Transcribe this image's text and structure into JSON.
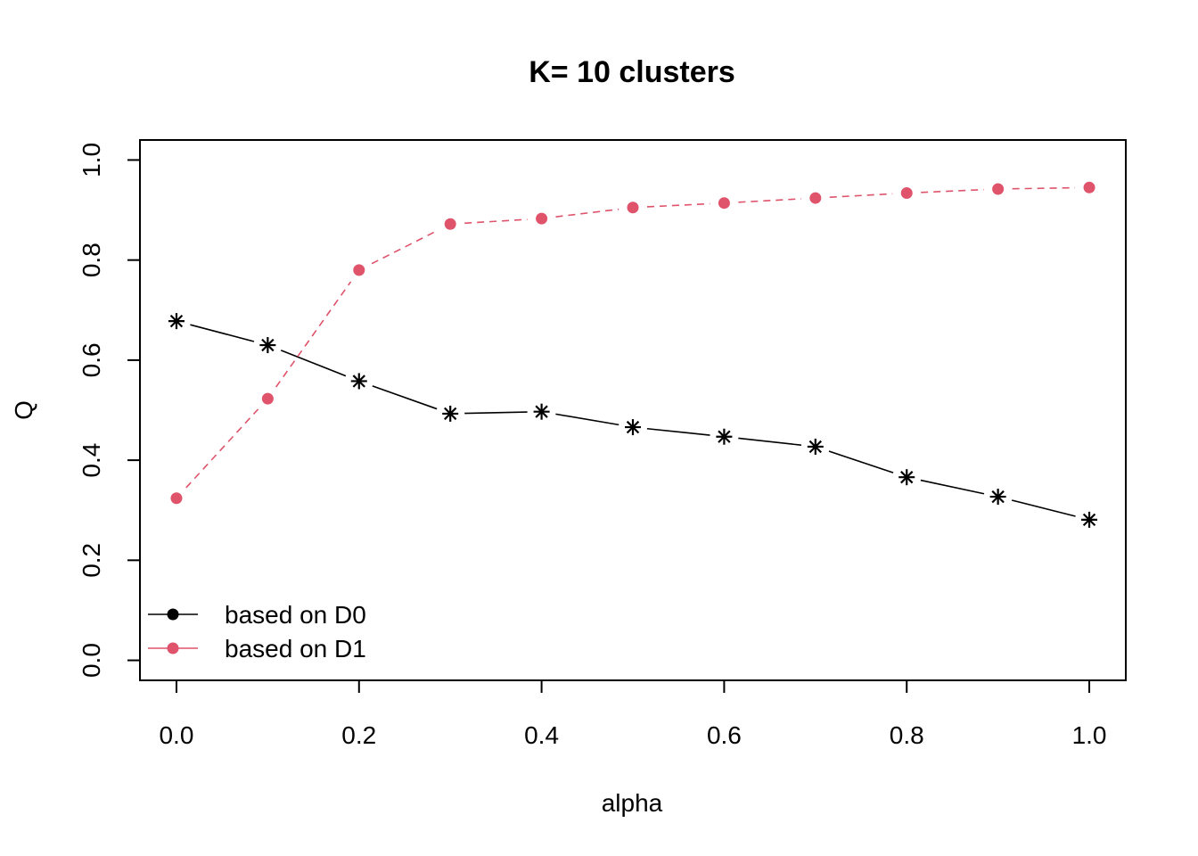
{
  "chart_data": {
    "type": "line",
    "title": "K= 10 clusters",
    "xlabel": "alpha",
    "ylabel": "Q",
    "xlim": [
      -0.04,
      1.04
    ],
    "ylim": [
      -0.04,
      1.04
    ],
    "x_ticks": [
      "0.0",
      "0.2",
      "0.4",
      "0.6",
      "0.8",
      "1.0"
    ],
    "y_ticks": [
      "0.0",
      "0.2",
      "0.4",
      "0.6",
      "0.8",
      "1.0"
    ],
    "x": [
      0.0,
      0.1,
      0.2,
      0.3,
      0.4,
      0.5,
      0.6,
      0.7,
      0.8,
      0.9,
      1.0
    ],
    "series": [
      {
        "name": "based on D0",
        "color": "#000000",
        "marker": "asterisk",
        "line": "solid",
        "values": [
          0.678,
          0.63,
          0.558,
          0.493,
          0.497,
          0.466,
          0.447,
          0.427,
          0.366,
          0.327,
          0.281
        ]
      },
      {
        "name": "based on D1",
        "color": "#DF536B",
        "marker": "dot",
        "line": "dashed",
        "values": [
          0.324,
          0.523,
          0.78,
          0.872,
          0.883,
          0.905,
          0.914,
          0.924,
          0.934,
          0.942,
          0.945
        ]
      }
    ],
    "legend": {
      "position": "bottom-left",
      "entries": [
        {
          "label": "based on D0",
          "color": "#000000"
        },
        {
          "label": "based on D1",
          "color": "#DF536B"
        }
      ]
    },
    "grid": false
  }
}
